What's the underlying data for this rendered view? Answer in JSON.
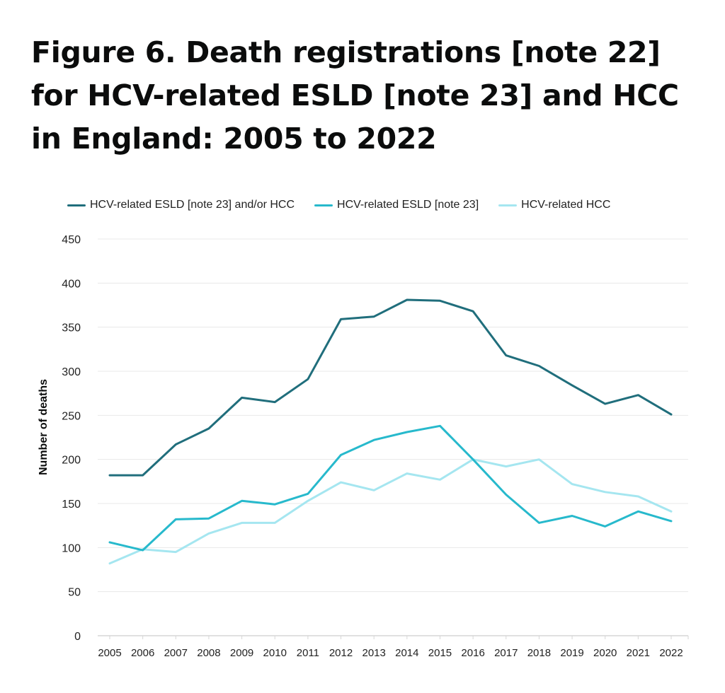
{
  "chart_data": {
    "type": "line",
    "title": "Figure 6. Death registrations [note 22] for HCV-related ESLD [note 23] and HCC in England: 2005 to 2022",
    "xlabel": "",
    "ylabel": "Number of deaths",
    "ylim": [
      0,
      450
    ],
    "yticks": [
      0,
      50,
      100,
      150,
      200,
      250,
      300,
      350,
      400,
      450
    ],
    "grid": true,
    "legend_position": "top",
    "categories": [
      "2005",
      "2006",
      "2007",
      "2008",
      "2009",
      "2010",
      "2011",
      "2012",
      "2013",
      "2014",
      "2015",
      "2016",
      "2017",
      "2018",
      "2019",
      "2020",
      "2021",
      "2022"
    ],
    "series": [
      {
        "name": "HCV-related ESLD [note 23] and/or HCC",
        "color": "#206e7c",
        "values": [
          182,
          182,
          217,
          235,
          270,
          265,
          291,
          359,
          362,
          381,
          380,
          368,
          318,
          306,
          284,
          263,
          273,
          251
        ]
      },
      {
        "name": "HCV-related ESLD [note 23]",
        "color": "#27b9cc",
        "values": [
          106,
          97,
          132,
          133,
          153,
          149,
          161,
          205,
          222,
          231,
          238,
          200,
          160,
          128,
          136,
          124,
          141,
          130
        ]
      },
      {
        "name": "HCV-related HCC",
        "color": "#a5e6f0",
        "values": [
          82,
          98,
          95,
          116,
          128,
          128,
          153,
          174,
          165,
          184,
          177,
          200,
          192,
          200,
          172,
          163,
          158,
          141
        ]
      }
    ]
  }
}
